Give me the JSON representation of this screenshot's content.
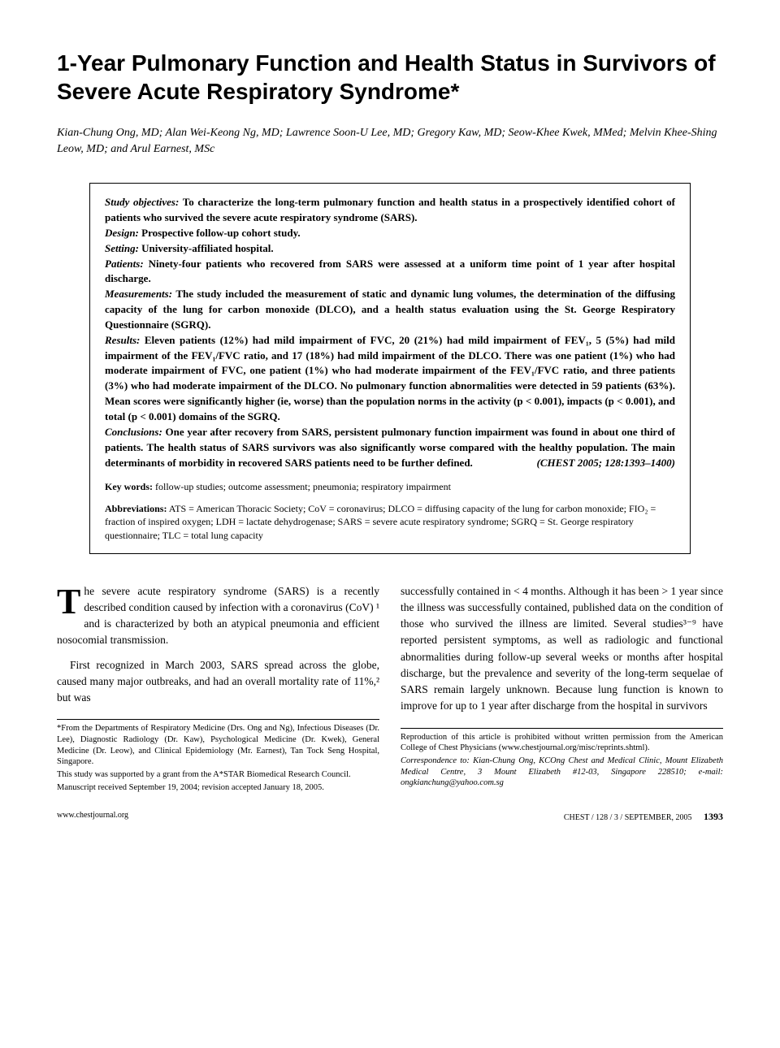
{
  "title": "1-Year Pulmonary Function and Health Status in Survivors of Severe Acute Respiratory Syndrome*",
  "authors": "Kian-Chung Ong, MD; Alan Wei-Keong Ng, MD; Lawrence Soon-U Lee, MD; Gregory Kaw, MD; Seow-Khee Kwek, MMed; Melvin Khee-Shing Leow, MD; and Arul Earnest, MSc",
  "abstract": {
    "objectives_label": "Study objectives:",
    "objectives": "To characterize the long-term pulmonary function and health status in a prospectively identified cohort of patients who survived the severe acute respiratory syndrome (SARS).",
    "design_label": "Design:",
    "design": "Prospective follow-up cohort study.",
    "setting_label": "Setting:",
    "setting": "University-affiliated hospital.",
    "patients_label": "Patients:",
    "patients": "Ninety-four patients who recovered from SARS were assessed at a uniform time point of 1 year after hospital discharge.",
    "measurements_label": "Measurements:",
    "measurements": "The study included the measurement of static and dynamic lung volumes, the determination of the diffusing capacity of the lung for carbon monoxide (DLCO), and a health status evaluation using the St. George Respiratory Questionnaire (SGRQ).",
    "results_label": "Results:",
    "results": "Eleven patients (12%) had mild impairment of FVC, 20 (21%) had mild impairment of FEV₁, 5 (5%) had mild impairment of the FEV₁/FVC ratio, and 17 (18%) had mild impairment of the DLCO. There was one patient (1%) who had moderate impairment of FVC, one patient (1%) who had moderate impairment of the FEV₁/FVC ratio, and three patients (3%) who had moderate impairment of the DLCO. No pulmonary function abnormalities were detected in 59 patients (63%). Mean scores were significantly higher (ie, worse) than the population norms in the activity (p < 0.001), impacts (p < 0.001), and total (p < 0.001) domains of the SGRQ.",
    "conclusions_label": "Conclusions:",
    "conclusions": "One year after recovery from SARS, persistent pulmonary function impairment was found in about one third of patients. The health status of SARS survivors was also significantly worse compared with the healthy population. The main determinants of morbidity in recovered SARS patients need to be further defined.",
    "citation": "(CHEST 2005; 128:1393–1400)",
    "keywords_label": "Key words:",
    "keywords": "follow-up studies; outcome assessment; pneumonia; respiratory impairment",
    "abbreviations_label": "Abbreviations:",
    "abbreviations": "ATS = American Thoracic Society; CoV = coronavirus; DLCO = diffusing capacity of the lung for carbon monoxide; FIO₂ = fraction of inspired oxygen; LDH = lactate dehydrogenase; SARS = severe acute respiratory syndrome; SGRQ = St. George respiratory questionnaire; TLC = total lung capacity"
  },
  "body": {
    "dropcap": "T",
    "para1": "he severe acute respiratory syndrome (SARS) is a recently described condition caused by infection with a coronavirus (CoV) ¹ and is characterized by both an atypical pneumonia and efficient nosocomial transmission.",
    "para2": "First recognized in March 2003, SARS spread across the globe, caused many major outbreaks, and had an overall mortality rate of 11%,² but was",
    "para3": "successfully contained in < 4 months. Although it has been > 1 year since the illness was successfully contained, published data on the condition of those who survived the illness are limited. Several studies³⁻⁹ have reported persistent symptoms, as well as radiologic and functional abnormalities during follow-up several weeks or months after hospital discharge, but the prevalence and severity of the long-term sequelae of SARS remain largely unknown. Because lung function is known to improve for up to 1 year after discharge from the hospital in survivors"
  },
  "footnotes_left": {
    "affiliation": "*From the Departments of Respiratory Medicine (Drs. Ong and Ng), Infectious Diseases (Dr. Lee), Diagnostic Radiology (Dr. Kaw), Psychological Medicine (Dr. Kwek), General Medicine (Dr. Leow), and Clinical Epidemiology (Mr. Earnest), Tan Tock Seng Hospital, Singapore.",
    "support": "This study was supported by a grant from the A*STAR Biomedical Research Council.",
    "manuscript": "Manuscript received September 19, 2004; revision accepted January 18, 2005."
  },
  "footnotes_right": {
    "reproduction": "Reproduction of this article is prohibited without written permission from the American College of Chest Physicians (www.chestjournal.org/misc/reprints.shtml).",
    "correspondence": "Correspondence to: Kian-Chung Ong, KCOng Chest and Medical Clinic, Mount Elizabeth Medical Centre, 3 Mount Elizabeth #12-03, Singapore 228510; e-mail: ongkianchung@yahoo.com.sg"
  },
  "footer": {
    "left": "www.chestjournal.org",
    "right": "CHEST / 128 / 3 / SEPTEMBER, 2005",
    "page": "1393"
  }
}
